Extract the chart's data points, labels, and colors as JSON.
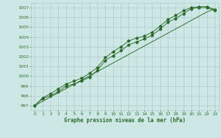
{
  "x": [
    0,
    1,
    2,
    3,
    4,
    5,
    6,
    7,
    8,
    9,
    10,
    11,
    12,
    13,
    14,
    15,
    16,
    17,
    18,
    19,
    20,
    21,
    22,
    23
  ],
  "series1": [
    997.0,
    997.8,
    998.2,
    998.7,
    999.2,
    999.5,
    999.8,
    1000.3,
    1000.9,
    1001.9,
    1002.5,
    1003.0,
    1003.6,
    1003.9,
    1004.1,
    1004.5,
    1005.1,
    1005.8,
    1006.2,
    1006.7,
    1007.0,
    1007.1,
    1007.1,
    1006.8
  ],
  "series2": [
    997.0,
    997.7,
    998.0,
    998.4,
    999.0,
    999.2,
    999.5,
    999.9,
    1000.6,
    1001.6,
    1002.1,
    1002.6,
    1003.2,
    1003.5,
    1003.8,
    1004.2,
    1004.8,
    1005.5,
    1005.9,
    1006.4,
    1006.9,
    1007.0,
    1007.0,
    1006.7
  ],
  "series3_linear": [
    997.0,
    997.43,
    997.87,
    998.3,
    998.74,
    999.17,
    999.61,
    1000.04,
    1000.48,
    1000.91,
    1001.35,
    1001.78,
    1002.22,
    1002.65,
    1003.09,
    1003.52,
    1003.96,
    1004.39,
    1004.83,
    1005.26,
    1005.7,
    1006.13,
    1006.57,
    1006.87
  ],
  "line_color": "#2d6a2d",
  "marker_color": "#2d6a2d",
  "background_color": "#cde8e4",
  "grid_color": "#aaccc7",
  "xlabel": "Graphe pression niveau de la mer (hPa)",
  "ylim": [
    996.5,
    1007.5
  ],
  "xlim": [
    -0.5,
    23.5
  ],
  "yticks": [
    997,
    998,
    999,
    1000,
    1001,
    1002,
    1003,
    1004,
    1005,
    1006,
    1007
  ],
  "xticks": [
    0,
    1,
    2,
    3,
    4,
    5,
    6,
    7,
    8,
    9,
    10,
    11,
    12,
    13,
    14,
    15,
    16,
    17,
    18,
    19,
    20,
    21,
    22,
    23
  ]
}
